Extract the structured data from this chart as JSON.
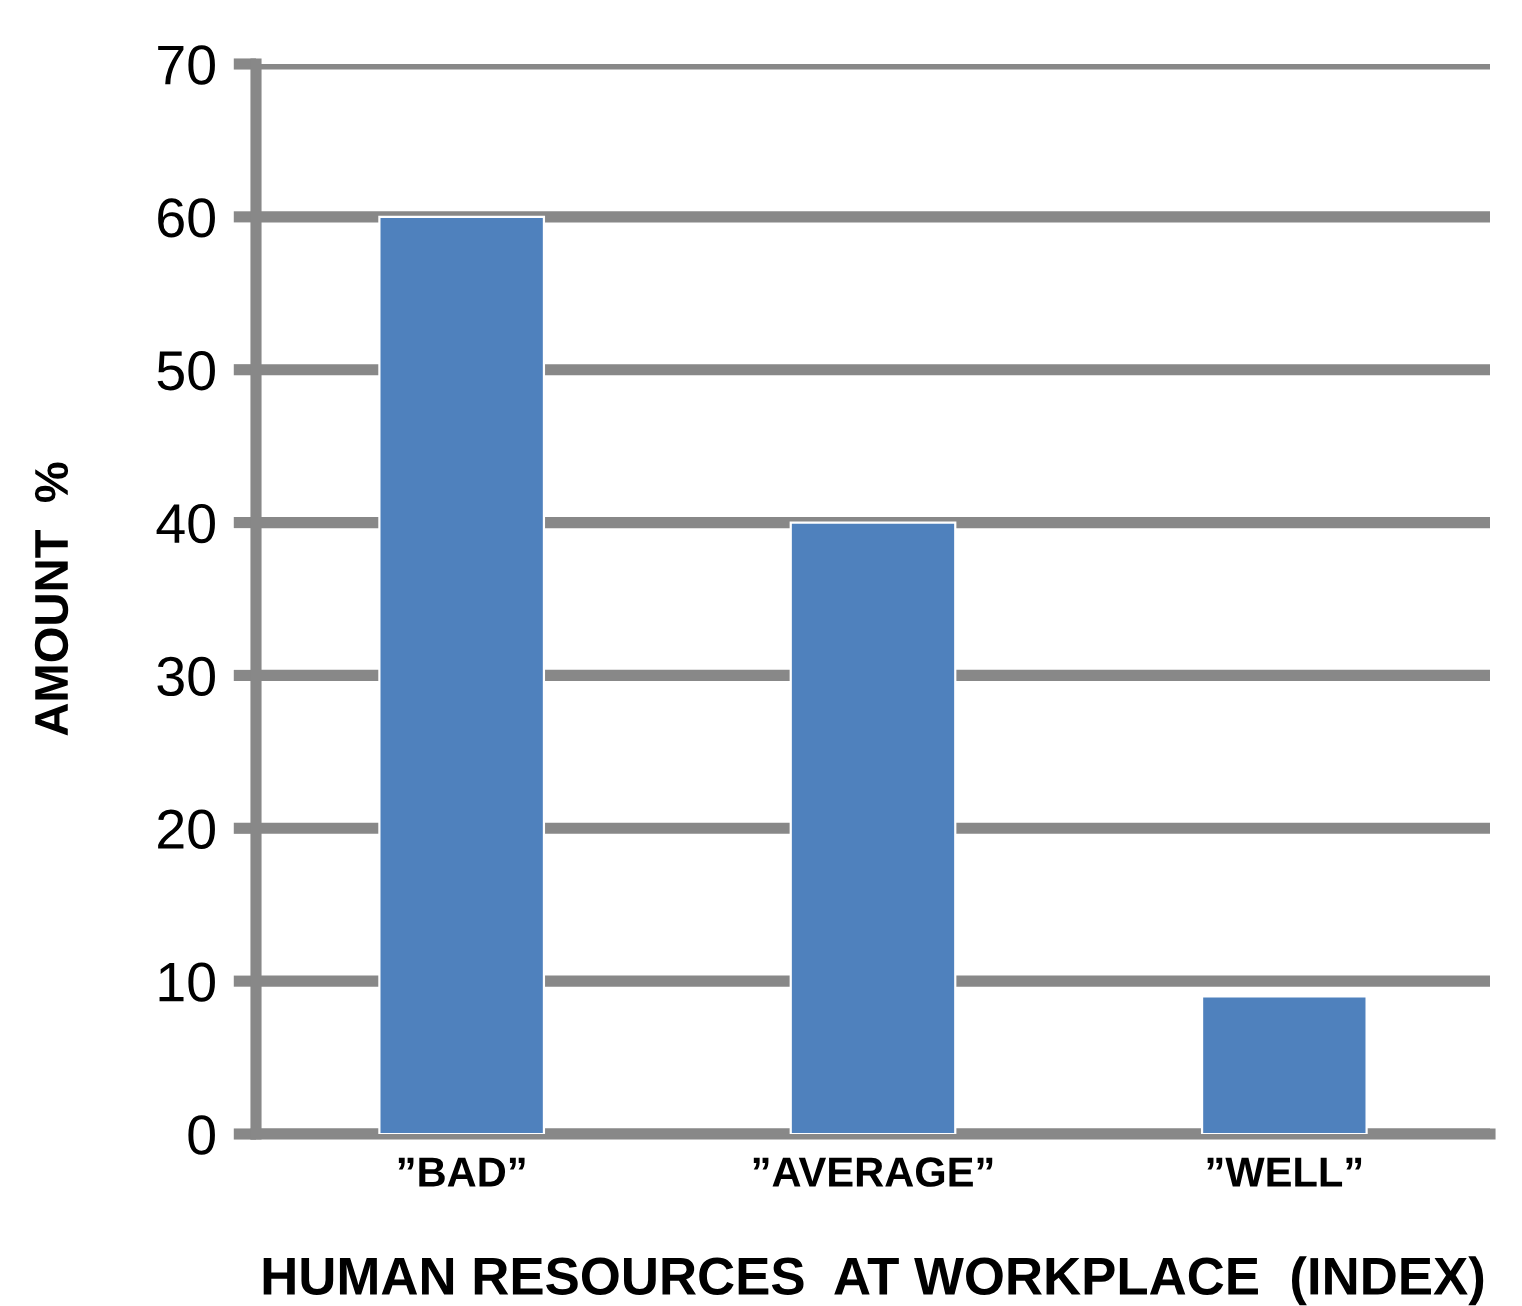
{
  "chart_data": {
    "type": "bar",
    "xlabel": "HUMAN RESOURCES  AT WORKPLACE  (INDEX)",
    "ylabel": "AMOUNT  %",
    "categories": [
      "”BAD”",
      "”AVERAGE”",
      "”WELL”"
    ],
    "values": [
      60,
      40,
      9
    ],
    "color": "#4f81bd",
    "ylim": [
      0,
      70
    ],
    "yticks": [
      0,
      10,
      20,
      30,
      40,
      50,
      60,
      70
    ],
    "grid": "y"
  }
}
